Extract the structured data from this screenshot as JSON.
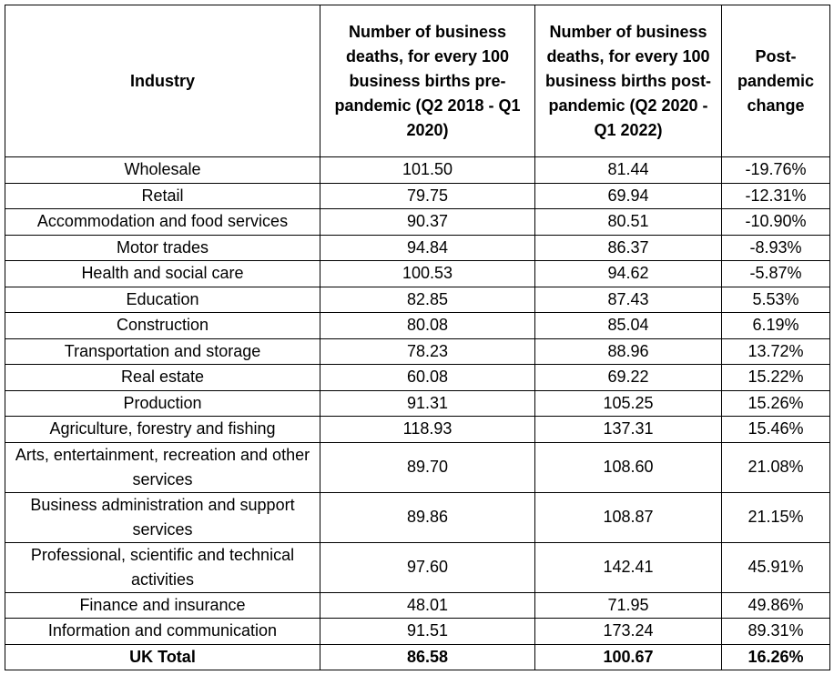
{
  "headers": {
    "industry": "Industry",
    "pre": "Number of business deaths, for every 100 business births pre-pandemic (Q2 2018 - Q1 2020)",
    "post": "Number of business deaths, for every 100 business births post-pandemic (Q2 2020 - Q1 2022)",
    "change": "Post-pandemic change"
  },
  "rows": [
    {
      "industry": "Wholesale",
      "pre": "101.50",
      "post": "81.44",
      "change": "-19.76%"
    },
    {
      "industry": "Retail",
      "pre": "79.75",
      "post": "69.94",
      "change": "-12.31%"
    },
    {
      "industry": "Accommodation and food services",
      "pre": "90.37",
      "post": "80.51",
      "change": "-10.90%"
    },
    {
      "industry": "Motor trades",
      "pre": "94.84",
      "post": "86.37",
      "change": "-8.93%"
    },
    {
      "industry": "Health and social care",
      "pre": "100.53",
      "post": "94.62",
      "change": "-5.87%"
    },
    {
      "industry": "Education",
      "pre": "82.85",
      "post": "87.43",
      "change": "5.53%"
    },
    {
      "industry": "Construction",
      "pre": "80.08",
      "post": "85.04",
      "change": "6.19%"
    },
    {
      "industry": "Transportation and storage",
      "pre": "78.23",
      "post": "88.96",
      "change": "13.72%"
    },
    {
      "industry": "Real estate",
      "pre": "60.08",
      "post": "69.22",
      "change": "15.22%"
    },
    {
      "industry": "Production",
      "pre": "91.31",
      "post": "105.25",
      "change": "15.26%"
    },
    {
      "industry": "Agriculture, forestry and fishing",
      "pre": "118.93",
      "post": "137.31",
      "change": "15.46%"
    },
    {
      "industry": "Arts, entertainment, recreation and other services",
      "pre": "89.70",
      "post": "108.60",
      "change": "21.08%"
    },
    {
      "industry": "Business administration and support services",
      "pre": "89.86",
      "post": "108.87",
      "change": "21.15%"
    },
    {
      "industry": "Professional, scientific and technical activities",
      "pre": "97.60",
      "post": "142.41",
      "change": "45.91%"
    },
    {
      "industry": "Finance and insurance",
      "pre": "48.01",
      "post": "71.95",
      "change": "49.86%"
    },
    {
      "industry": "Information and communication",
      "pre": "91.51",
      "post": "173.24",
      "change": "89.31%"
    }
  ],
  "total": {
    "industry": "UK Total",
    "pre": "86.58",
    "post": "100.67",
    "change": "16.26%"
  }
}
